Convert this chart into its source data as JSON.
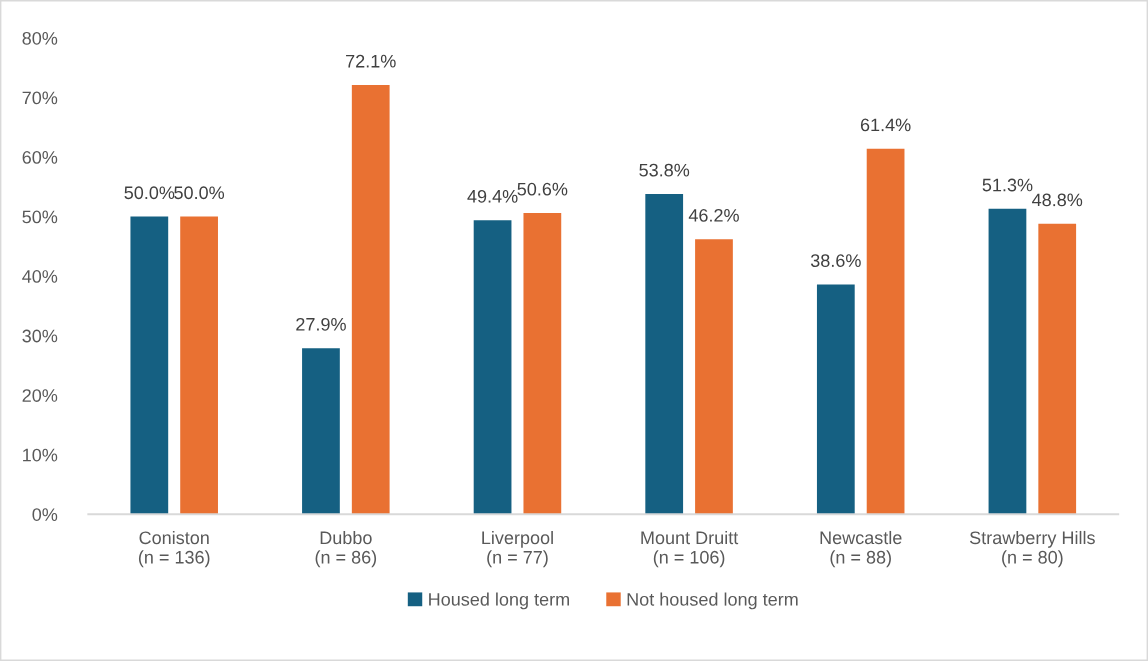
{
  "chart_data": {
    "type": "bar",
    "categories": [
      "Coniston\n(n = 136)",
      "Dubbo\n(n = 86)",
      "Liverpool\n(n = 77)",
      "Mount Druitt\n(n = 106)",
      "Newcastle\n(n = 88)",
      "Strawberry Hills\n(n = 80)"
    ],
    "series": [
      {
        "name": "Housed long term",
        "color": "#156082",
        "values": [
          50.0,
          27.9,
          49.4,
          53.8,
          38.6,
          51.3
        ],
        "value_labels": [
          "50.0%",
          "27.9%",
          "49.4%",
          "53.8%",
          "38.6%",
          "51.3%"
        ]
      },
      {
        "name": "Not housed long term",
        "color": "#e97132",
        "values": [
          50.0,
          72.1,
          50.6,
          46.2,
          61.4,
          48.8
        ],
        "value_labels": [
          "50.0%",
          "72.1%",
          "50.6%",
          "46.2%",
          "61.4%",
          "48.8%"
        ]
      }
    ],
    "ylim": [
      0,
      80
    ],
    "yticks": [
      {
        "value": 0,
        "label": "0%"
      },
      {
        "value": 10,
        "label": "10%"
      },
      {
        "value": 20,
        "label": "20%"
      },
      {
        "value": 30,
        "label": "30%"
      },
      {
        "value": 40,
        "label": "40%"
      },
      {
        "value": 50,
        "label": "50%"
      },
      {
        "value": 60,
        "label": "60%"
      },
      {
        "value": 70,
        "label": "70%"
      },
      {
        "value": 80,
        "label": "80%"
      }
    ],
    "legend": "bottom"
  }
}
